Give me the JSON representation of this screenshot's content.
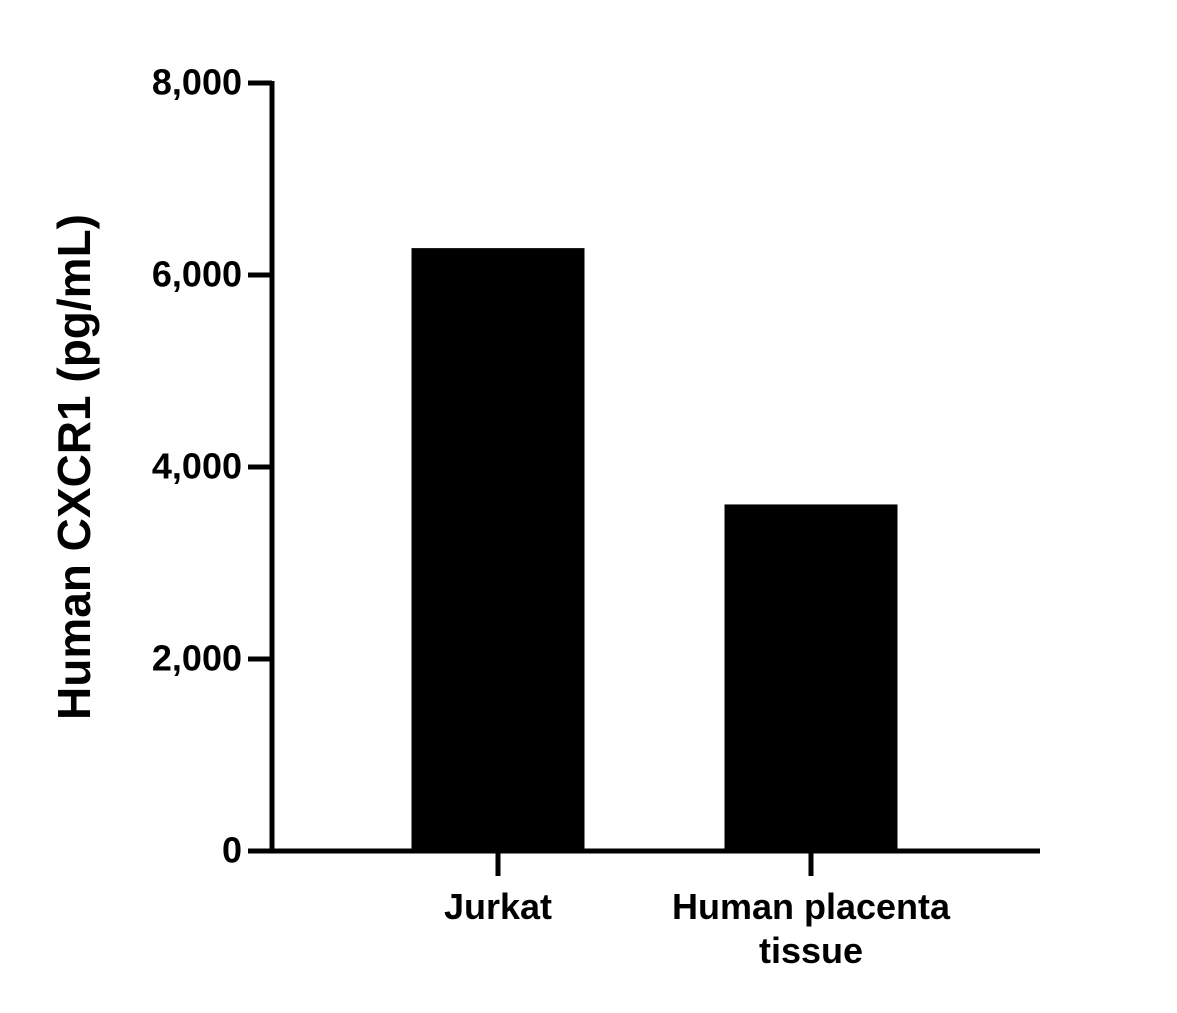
{
  "chart_data": {
    "type": "bar",
    "ylabel": "Human CXCR1 (pg/mL)",
    "categories": [
      "Jurkat",
      "Human placenta tissue"
    ],
    "values": [
      6280,
      3610
    ],
    "color": "#000000",
    "ylim": [
      0,
      8000
    ],
    "yticks": [
      0,
      {
        "value": 2000,
        "label": "2,000"
      },
      {
        "value": 4000,
        "label": "4,000"
      },
      {
        "value": 6000,
        "label": "6,000"
      },
      {
        "value": 8000,
        "label": "8,000"
      }
    ],
    "grid": false
  }
}
